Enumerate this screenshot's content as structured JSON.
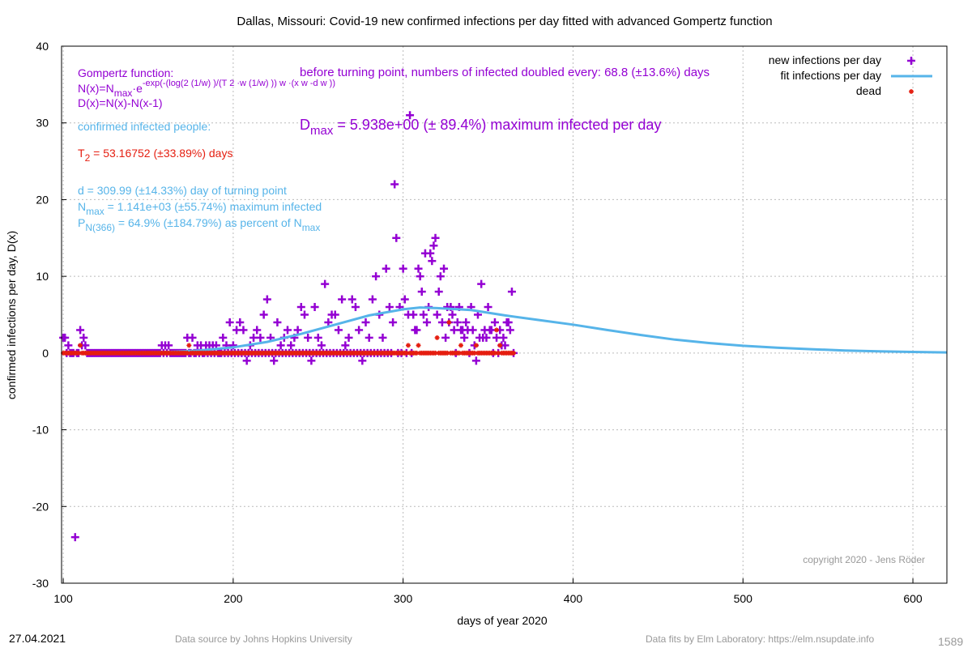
{
  "chart_data": {
    "type": "scatter",
    "title": "Dallas,  Missouri: Covid-19 new confirmed infections per day fitted with advanced Gompertz function",
    "xlabel": "days of year 2020",
    "ylabel": "confirmed infections per day, D(x)",
    "xlim": [
      99,
      620
    ],
    "ylim": [
      -30,
      40
    ],
    "x_ticks": [
      100,
      200,
      300,
      400,
      500,
      600
    ],
    "y_ticks": [
      -30,
      -20,
      -10,
      0,
      10,
      20,
      30,
      40
    ],
    "grid": true,
    "legend_position": "top-right",
    "legend": [
      {
        "label": "new infections per day",
        "marker": "plus",
        "color": "#9400d3"
      },
      {
        "label": "fit infections per day",
        "marker": "line",
        "color": "#56b4e9"
      },
      {
        "label": "dead",
        "marker": "star",
        "color": "#e51e10"
      }
    ],
    "series": [
      {
        "name": "new infections per day",
        "color": "#9400d3",
        "points": [
          [
            100,
            2
          ],
          [
            101,
            2
          ],
          [
            103,
            1
          ],
          [
            107,
            -24
          ],
          [
            110,
            3
          ],
          [
            111,
            1
          ],
          [
            112,
            2
          ],
          [
            113,
            1
          ],
          [
            158,
            1
          ],
          [
            160,
            1
          ],
          [
            162,
            1
          ],
          [
            173,
            2
          ],
          [
            176,
            2
          ],
          [
            179,
            1
          ],
          [
            181,
            1
          ],
          [
            184,
            1
          ],
          [
            186,
            1
          ],
          [
            188,
            1
          ],
          [
            190,
            1
          ],
          [
            194,
            2
          ],
          [
            196,
            1
          ],
          [
            198,
            4
          ],
          [
            200,
            1
          ],
          [
            202,
            3
          ],
          [
            204,
            4
          ],
          [
            206,
            3
          ],
          [
            208,
            -1
          ],
          [
            210,
            1
          ],
          [
            212,
            2
          ],
          [
            214,
            3
          ],
          [
            216,
            2
          ],
          [
            218,
            5
          ],
          [
            220,
            7
          ],
          [
            222,
            2
          ],
          [
            224,
            -1
          ],
          [
            226,
            4
          ],
          [
            228,
            1
          ],
          [
            230,
            2
          ],
          [
            232,
            3
          ],
          [
            234,
            1
          ],
          [
            236,
            2
          ],
          [
            238,
            3
          ],
          [
            240,
            6
          ],
          [
            242,
            5
          ],
          [
            244,
            2
          ],
          [
            246,
            -1
          ],
          [
            248,
            6
          ],
          [
            250,
            2
          ],
          [
            252,
            1
          ],
          [
            254,
            9
          ],
          [
            256,
            4
          ],
          [
            258,
            5
          ],
          [
            260,
            5
          ],
          [
            262,
            3
          ],
          [
            264,
            7
          ],
          [
            266,
            1
          ],
          [
            268,
            2
          ],
          [
            270,
            7
          ],
          [
            272,
            6
          ],
          [
            274,
            3
          ],
          [
            276,
            -1
          ],
          [
            278,
            4
          ],
          [
            280,
            2
          ],
          [
            282,
            7
          ],
          [
            284,
            10
          ],
          [
            286,
            5
          ],
          [
            288,
            2
          ],
          [
            290,
            11
          ],
          [
            292,
            6
          ],
          [
            294,
            4
          ],
          [
            295,
            22
          ],
          [
            296,
            15
          ],
          [
            298,
            6
          ],
          [
            300,
            11
          ],
          [
            301,
            7
          ],
          [
            303,
            5
          ],
          [
            304,
            31
          ],
          [
            306,
            5
          ],
          [
            307,
            3
          ],
          [
            308,
            3
          ],
          [
            309,
            11
          ],
          [
            310,
            10
          ],
          [
            311,
            8
          ],
          [
            312,
            5
          ],
          [
            313,
            13
          ],
          [
            314,
            4
          ],
          [
            315,
            6
          ],
          [
            316,
            13
          ],
          [
            317,
            12
          ],
          [
            318,
            14
          ],
          [
            319,
            15
          ],
          [
            320,
            5
          ],
          [
            321,
            8
          ],
          [
            322,
            10
          ],
          [
            323,
            4
          ],
          [
            324,
            11
          ],
          [
            325,
            2
          ],
          [
            326,
            6
          ],
          [
            327,
            4
          ],
          [
            328,
            6
          ],
          [
            329,
            5
          ],
          [
            330,
            3
          ],
          [
            332,
            4
          ],
          [
            333,
            6
          ],
          [
            334,
            3
          ],
          [
            335,
            3
          ],
          [
            336,
            2
          ],
          [
            337,
            4
          ],
          [
            338,
            3
          ],
          [
            340,
            6
          ],
          [
            341,
            3
          ],
          [
            342,
            1
          ],
          [
            343,
            -1
          ],
          [
            344,
            5
          ],
          [
            345,
            2
          ],
          [
            346,
            9
          ],
          [
            347,
            2
          ],
          [
            348,
            3
          ],
          [
            349,
            2
          ],
          [
            350,
            6
          ],
          [
            351,
            3
          ],
          [
            352,
            3
          ],
          [
            354,
            4
          ],
          [
            355,
            2
          ],
          [
            357,
            3
          ],
          [
            358,
            1
          ],
          [
            359,
            2
          ],
          [
            360,
            1
          ],
          [
            361,
            4
          ],
          [
            362,
            4
          ],
          [
            363,
            3
          ],
          [
            364,
            8
          ]
        ]
      },
      {
        "name": "dead",
        "color": "#e51e10",
        "points": [
          [
            110,
            1
          ],
          [
            174,
            1
          ],
          [
            303,
            1
          ],
          [
            309,
            1
          ],
          [
            320,
            2
          ],
          [
            327,
            4
          ],
          [
            334,
            1
          ],
          [
            343,
            1
          ],
          [
            355,
            3
          ],
          [
            357,
            1
          ]
        ],
        "zero_range": [
          100,
          365
        ]
      },
      {
        "name": "fit infections per day",
        "color": "#56b4e9",
        "points": [
          [
            100,
            0.001
          ],
          [
            120,
            0.01
          ],
          [
            140,
            0.04
          ],
          [
            160,
            0.12
          ],
          [
            180,
            0.32
          ],
          [
            200,
            0.75
          ],
          [
            220,
            1.45
          ],
          [
            240,
            2.5
          ],
          [
            260,
            3.7
          ],
          [
            280,
            4.9
          ],
          [
            300,
            5.7
          ],
          [
            310,
            5.94
          ],
          [
            320,
            5.85
          ],
          [
            340,
            5.6
          ],
          [
            360,
            4.9
          ],
          [
            380,
            4.3
          ],
          [
            400,
            3.7
          ],
          [
            420,
            3.0
          ],
          [
            440,
            2.35
          ],
          [
            460,
            1.75
          ],
          [
            480,
            1.3
          ],
          [
            500,
            0.95
          ],
          [
            520,
            0.7
          ],
          [
            540,
            0.5
          ],
          [
            560,
            0.33
          ],
          [
            580,
            0.22
          ],
          [
            600,
            0.14
          ],
          [
            620,
            0.08
          ]
        ]
      }
    ],
    "annotations": {
      "gompertz_title": "Gompertz function:",
      "formula_n": "N(x)=N",
      "formula_n_sub": "max",
      "formula_e": "·e",
      "formula_exp": "-exp(-(log(2 (1/w) )/(T 2 ·w (1/w) )) w ·(x w -d w ))",
      "formula_d": "D(x)=N(x)-N(x-1)",
      "confirmed_label": "confirmed infected people:",
      "t2_label": "T",
      "t2_sub": "2",
      "t2_value": " = 53.16752 (±33.89%) days",
      "d_label": "d = 309.99 (±14.33%) day of turning point",
      "nmax_label": "N",
      "nmax_sub": "max",
      "nmax_value": " = 1.141e+03 (±55.74%) maximum infected",
      "p_label": "P",
      "p_sub": "N(366)",
      "p_value": " = 64.9% (±184.79%) as percent of N",
      "p_sub2": "max",
      "doubling": "before turning point, numbers of infected doubled every: 68.8 (±13.6%) days",
      "dmax_label": "D",
      "dmax_sub": "max",
      "dmax_value": " = 5.938e+00 (± 89.4%) maximum infected per day",
      "copyright": "copyright 2020 - Jens Röder"
    },
    "colors": {
      "purple": "#9400d3",
      "blue": "#56b4e9",
      "red": "#e51e10",
      "gray": "#999999"
    }
  },
  "footer": {
    "date": "27.04.2021",
    "source": "Data source by Johns Hopkins University",
    "fits": "Data fits by Elm Laboratory: https://elm.nsupdate.info",
    "id": "1589"
  }
}
